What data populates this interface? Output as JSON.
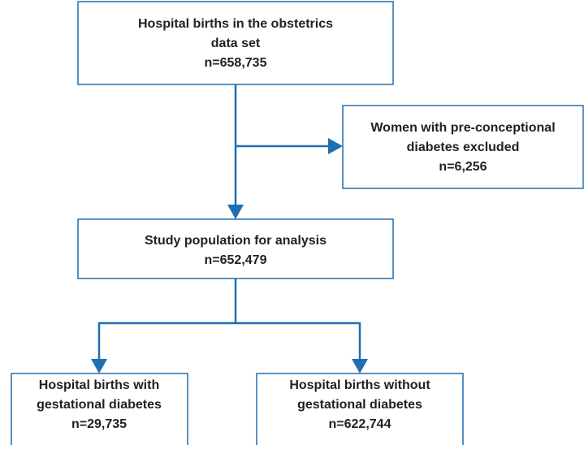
{
  "nodes": [
    {
      "lines": [
        "Hospital births in the obstetrics",
        "data set",
        "n=658,735"
      ]
    },
    {
      "lines": [
        "Women with pre-conceptional",
        "diabetes excluded",
        "n=6,256"
      ]
    },
    {
      "lines": [
        "Study population for analysis",
        "n=652,479"
      ]
    },
    {
      "lines": [
        "Hospital births with",
        "gestational diabetes",
        "n=29,735"
      ]
    },
    {
      "lines": [
        "Hospital births without",
        "gestational diabetes",
        "n=622,744"
      ]
    }
  ]
}
